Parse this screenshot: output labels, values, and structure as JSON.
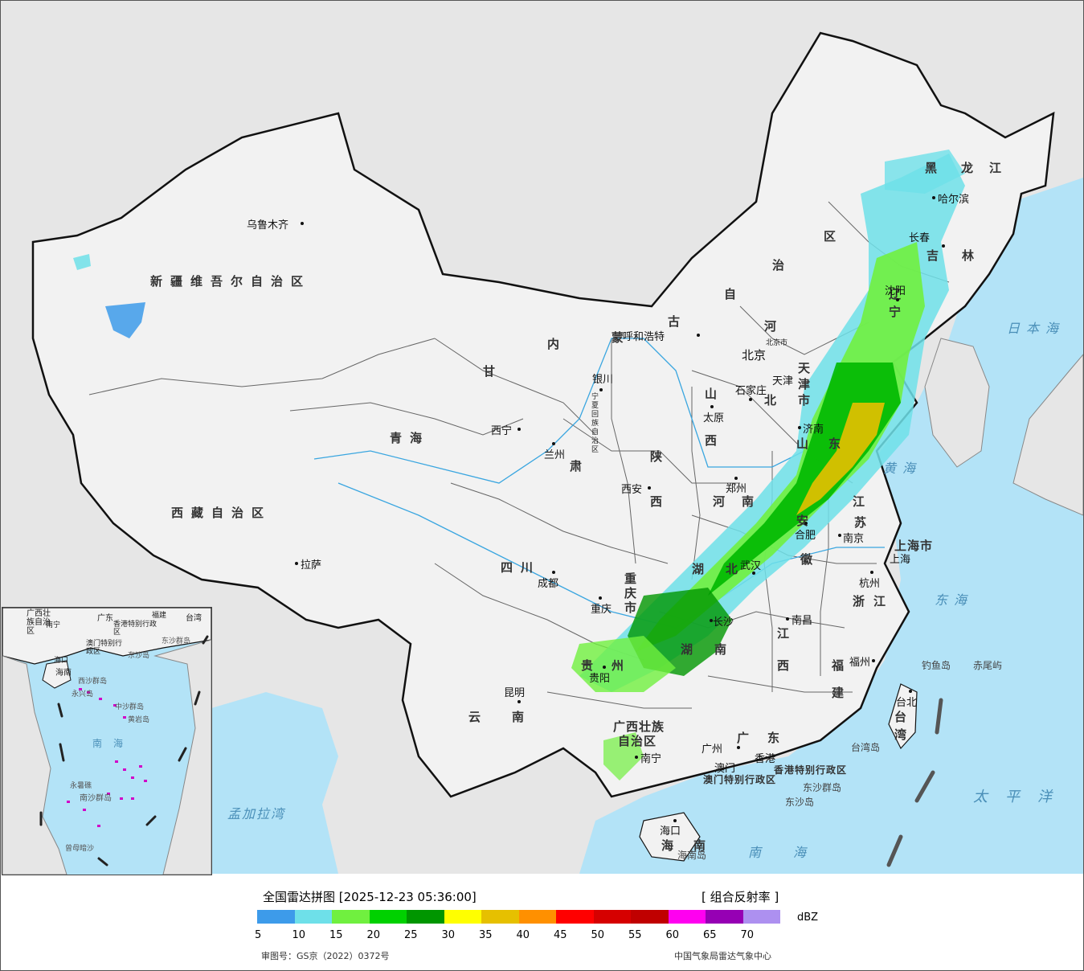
{
  "colors": {
    "sea": "#b3e3f7",
    "land": "#f2f2f2",
    "outside": "#e6e6e6",
    "border": "#111111",
    "river": "#3aa6e0"
  },
  "title": "全国雷达拼图 [2025-12-23 05:36:00]",
  "product": "[ 组合反射率 ]",
  "legend": {
    "unit": "dBZ",
    "colors": [
      "#3d9bea",
      "#6ee0e9",
      "#70f03f",
      "#00d100",
      "#009600",
      "#ffff00",
      "#e6c000",
      "#ff9000",
      "#ff0000",
      "#d60000",
      "#c00000",
      "#ff00f0",
      "#9600b4",
      "#ad90f0"
    ],
    "ticks": [
      "5",
      "10",
      "15",
      "20",
      "25",
      "30",
      "35",
      "40",
      "45",
      "50",
      "55",
      "60",
      "65",
      "70"
    ]
  },
  "footer": {
    "left": "审图号：GS京（2022）0372号",
    "right": "中国气象局雷达气象中心"
  },
  "provinces": [
    "新疆维吾尔自治区",
    "西藏自治区",
    "青海",
    "四川",
    "甘",
    "肃",
    "内",
    "蒙",
    "古",
    "自",
    "治",
    "区",
    "黑",
    "龙",
    "江",
    "吉",
    "林",
    "辽",
    "宁",
    "河",
    "北",
    "山",
    "西",
    "陕",
    "西",
    "河",
    "南",
    "山",
    "东",
    "江",
    "苏",
    "安",
    "徽",
    "湖",
    "北",
    "湖",
    "南",
    "江",
    "西",
    "浙",
    "江",
    "福",
    "建",
    "贵",
    "州",
    "云",
    "南",
    "广西壮族",
    "自治区",
    "广",
    "东",
    "海",
    "南",
    "台",
    "湾",
    "重",
    "庆",
    "市",
    "上海市",
    "天",
    "津",
    "市"
  ],
  "cities": [
    "乌鲁木齐",
    "拉萨",
    "西宁",
    "兰州",
    "银川",
    "呼和浩特",
    "西安",
    "成都",
    "重庆",
    "昆明",
    "贵阳",
    "南宁",
    "广州",
    "香港",
    "澳门",
    "海口",
    "长沙",
    "武汉",
    "南昌",
    "郑州",
    "太原",
    "石家庄",
    "北京",
    "天津",
    "济南",
    "合肥",
    "南京",
    "上海",
    "杭州",
    "福州",
    "台北",
    "沈阳",
    "长春",
    "哈尔滨"
  ],
  "regions": [
    "宁夏回族自治区",
    "北京市",
    "香港特别行政区",
    "澳门特别行政区",
    "东沙群岛",
    "东沙岛",
    "钓鱼岛",
    "赤尾屿",
    "台湾岛",
    "海南岛"
  ],
  "seas": [
    "日本海",
    "黄海",
    "东海",
    "南海",
    "太平洋",
    "孟加拉湾"
  ],
  "inset": {
    "labels": [
      "广西壮族自治区",
      "广东",
      "福建",
      "台湾",
      "南宁",
      "香港特别行政区",
      "澳门特别行政区",
      "东沙群岛",
      "东沙岛",
      "海口",
      "海南",
      "西沙群岛",
      "永兴岛",
      "中沙群岛",
      "黄岩岛",
      "南海",
      "永暑礁",
      "南沙群岛",
      "曾母暗沙"
    ]
  }
}
